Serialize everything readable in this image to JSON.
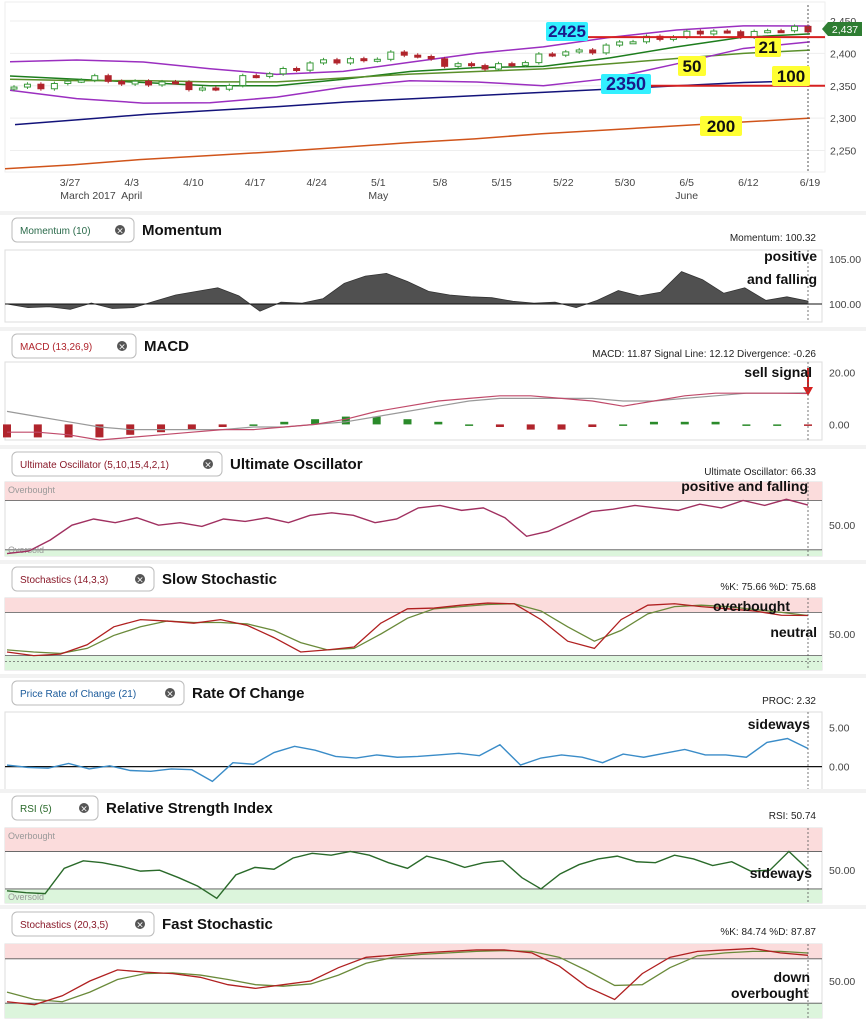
{
  "colors": {
    "up_candle": "#3a9a3a",
    "down_candle": "#b0242c",
    "bollinger": "#9b2fc0",
    "ma21": "#1d7d1d",
    "ma50": "#5a8f2a",
    "ma100": "#13137a",
    "ma200": "#d0541a",
    "support": "#d62020",
    "last_price_bg": "#2e7d32",
    "overbought_bg": "#fbdcdc",
    "oversold_bg": "#dcf5dc",
    "momentum_fill": "#505050",
    "macd_line": "#c04a6a",
    "signal_line": "#999999",
    "hist_neg": "#b0242c",
    "hist_pos": "#2a8a2a",
    "uo_line": "#a03060",
    "k_line": "#b02020",
    "d_line": "#6a8a3a",
    "proc_line": "#3a8cc8",
    "rsi_line": "#2a6a2a",
    "label_yellow": "#ffff33",
    "label_cyan": "#33f0ff"
  },
  "price_chart": {
    "x_labels": [
      "3/27",
      "4/3",
      "4/10",
      "4/17",
      "4/24",
      "5/1",
      "5/8",
      "5/15",
      "5/22",
      "5/30",
      "6/5",
      "6/12",
      "6/19"
    ],
    "month_labels": [
      "March 2017",
      "April",
      "May",
      "June"
    ],
    "y_ticks": [
      "2,450",
      "2,400",
      "2,350",
      "2,300",
      "2,250"
    ],
    "last_price": "2,437",
    "annotations": {
      "level_2425": "2425",
      "level_2350": "2350",
      "ma21": "21",
      "ma50": "50",
      "ma100": "100",
      "ma200": "200"
    }
  },
  "panels": [
    {
      "id": "momentum",
      "tag": "Momentum (10)",
      "title": "Momentum",
      "readout": "Momentum: 100.32",
      "y_ticks": [
        "105.00",
        "100.00"
      ],
      "notes": [
        "positive",
        "and falling"
      ]
    },
    {
      "id": "macd",
      "tag": "MACD (13,26,9)",
      "title": "MACD",
      "readout": "MACD: 11.87 Signal Line: 12.12 Divergence: -0.26",
      "y_ticks": [
        "20.00",
        "0.00"
      ],
      "notes": [
        "sell signal"
      ]
    },
    {
      "id": "uo",
      "tag": "Ultimate Oscillator (5,10,15,4,2,1)",
      "title": "Ultimate Oscillator",
      "readout": "Ultimate Oscillator: 66.33",
      "y_ticks": [
        "50.00"
      ],
      "notes": [
        "positive and falling"
      ],
      "zones": [
        "Overbought",
        "Oversold"
      ]
    },
    {
      "id": "slowstoch",
      "tag": "Stochastics (14,3,3)",
      "title": "Slow Stochastic",
      "readout": "%K: 75.66 %D: 75.68",
      "y_ticks": [
        "50.00"
      ],
      "notes": [
        "overbought",
        "neutral"
      ]
    },
    {
      "id": "proc",
      "tag": "Price Rate of Change (21)",
      "title": "Rate Of Change",
      "readout": "PROC: 2.32",
      "y_ticks": [
        "5.00",
        "0.00"
      ],
      "notes": [
        "sideways"
      ]
    },
    {
      "id": "rsi",
      "tag": "RSI (5)",
      "title": "Relative Strength Index",
      "readout": "RSI: 50.74",
      "y_ticks": [
        "50.00"
      ],
      "notes": [
        "sideways"
      ],
      "zones": [
        "Overbought",
        "Oversold"
      ]
    },
    {
      "id": "faststoch",
      "tag": "Stochastics (20,3,5)",
      "title": "Fast Stochastic",
      "readout": "%K: 84.74 %D: 87.87",
      "y_ticks": [
        "50.00"
      ],
      "notes": [
        "down",
        "overbought"
      ]
    }
  ],
  "chart_data": [
    {
      "type": "candlestick",
      "title": "",
      "xlabel": "",
      "ylabel": "",
      "x": [
        "3/27",
        "4/3",
        "4/10",
        "4/17",
        "4/24",
        "5/1",
        "5/8",
        "5/15",
        "5/22",
        "5/30",
        "6/5",
        "6/12",
        "6/19"
      ],
      "ylim": [
        2220,
        2470
      ],
      "close_approx": [
        2345,
        2360,
        2355,
        2345,
        2375,
        2390,
        2398,
        2375,
        2395,
        2412,
        2430,
        2432,
        2437
      ],
      "series": [
        {
          "name": "21",
          "values": [
            2365,
            2360,
            2355,
            2350,
            2350,
            2360,
            2372,
            2378,
            2380,
            2393,
            2410,
            2425,
            2430
          ]
        },
        {
          "name": "50",
          "values": [
            2360,
            2358,
            2358,
            2356,
            2356,
            2362,
            2368,
            2372,
            2376,
            2384,
            2392,
            2400,
            2405
          ]
        },
        {
          "name": "100",
          "values": [
            2290,
            2298,
            2306,
            2312,
            2318,
            2325,
            2330,
            2335,
            2340,
            2345,
            2350,
            2355,
            2358
          ]
        },
        {
          "name": "200",
          "values": [
            2222,
            2228,
            2236,
            2242,
            2248,
            2255,
            2262,
            2268,
            2276,
            2282,
            2288,
            2294,
            2300
          ]
        }
      ],
      "levels": [
        2425,
        2350
      ],
      "grid": true
    },
    {
      "type": "area",
      "title": "Momentum",
      "ylim": [
        98,
        106
      ],
      "series": [
        {
          "values": [
            100.0,
            99.6,
            99.7,
            99.4,
            100.1,
            99.5,
            99.6,
            100.3,
            101.0,
            101.4,
            101.8,
            100.9,
            99.2,
            100.2,
            100.1,
            100.6,
            102.3,
            103.1,
            103.4,
            102.5,
            101.4,
            101.0,
            100.8,
            100.7,
            100.3,
            100.1,
            100.2,
            99.6,
            100.4,
            101.5,
            100.9,
            101.3,
            103.6,
            102.7,
            101.2,
            101.8,
            100.4,
            100.8,
            100.32
          ]
        }
      ]
    },
    {
      "type": "line",
      "title": "MACD",
      "ylim": [
        -6,
        24
      ],
      "series": [
        {
          "name": "MACD",
          "values": [
            -3,
            -3,
            -4,
            -6,
            -5,
            -4,
            -3,
            -2,
            -2,
            -1,
            0,
            2,
            5,
            7,
            9,
            10,
            11,
            11,
            10,
            9,
            7,
            9,
            11,
            12,
            12,
            12,
            11.87
          ]
        },
        {
          "name": "Signal Line",
          "values": [
            5,
            3,
            1,
            -1,
            -2,
            -2,
            -2,
            -2,
            -1,
            -1,
            0,
            1,
            3,
            5,
            7,
            9,
            10,
            10,
            10,
            10,
            9,
            9,
            10,
            11,
            12,
            12,
            12.12
          ]
        },
        {
          "name": "Divergence",
          "values": [
            -5,
            -5,
            -5,
            -5,
            -4,
            -3,
            -2,
            -1,
            0,
            1,
            2,
            3,
            3,
            2,
            1,
            0,
            -1,
            -2,
            -2,
            -1,
            0,
            1,
            1,
            1,
            0,
            0,
            -0.26
          ]
        }
      ]
    },
    {
      "type": "line",
      "title": "Ultimate Oscillator",
      "ylim": [
        25,
        85
      ],
      "series": [
        {
          "values": [
            27,
            29,
            38,
            50,
            55,
            52,
            56,
            50,
            52,
            49,
            55,
            53,
            56,
            52,
            58,
            60,
            58,
            52,
            55,
            64,
            66,
            62,
            64,
            56,
            41,
            45,
            53,
            61,
            63,
            66,
            64,
            62,
            67,
            64,
            70,
            66,
            71,
            66.33
          ]
        }
      ]
    },
    {
      "type": "line",
      "title": "Slow Stochastic",
      "ylim": [
        0,
        100
      ],
      "series": [
        {
          "name": "%K",
          "values": [
            25,
            20,
            22,
            35,
            60,
            70,
            68,
            65,
            70,
            62,
            45,
            25,
            28,
            32,
            65,
            85,
            86,
            90,
            93,
            92,
            70,
            40,
            30,
            70,
            90,
            92,
            88,
            85,
            82,
            76,
            75.66
          ]
        },
        {
          "name": "%D",
          "values": [
            28,
            25,
            23,
            30,
            48,
            60,
            68,
            66,
            66,
            64,
            55,
            38,
            28,
            30,
            50,
            72,
            85,
            88,
            91,
            92,
            82,
            60,
            40,
            55,
            78,
            88,
            90,
            88,
            84,
            80,
            75.68
          ]
        }
      ]
    },
    {
      "type": "line",
      "title": "Rate Of Change",
      "ylim": [
        -3,
        7
      ],
      "series": [
        {
          "values": [
            0.2,
            -0.1,
            -0.2,
            0.4,
            -0.3,
            0.1,
            -0.5,
            -0.6,
            -0.3,
            -0.4,
            -1.9,
            0.5,
            0.3,
            1.8,
            2.6,
            2.1,
            1.3,
            1.1,
            1.5,
            1.2,
            1.3,
            1.5,
            1.7,
            1.4,
            2.8,
            0.2,
            1.1,
            1.5,
            1.2,
            0.5,
            1.6,
            1.2,
            1.7,
            2.2,
            1.5,
            1.5,
            1.2,
            3.1,
            3.6,
            2.32
          ]
        }
      ]
    },
    {
      "type": "line",
      "title": "Relative Strength Index",
      "ylim": [
        15,
        95
      ],
      "series": [
        {
          "values": [
            28,
            26,
            25,
            52,
            60,
            58,
            54,
            49,
            50,
            42,
            33,
            20,
            45,
            53,
            51,
            63,
            68,
            66,
            70,
            66,
            58,
            52,
            65,
            60,
            53,
            58,
            60,
            42,
            30,
            46,
            56,
            62,
            65,
            59,
            58,
            66,
            62,
            55,
            59,
            49,
            50,
            70,
            50.74
          ]
        }
      ]
    },
    {
      "type": "line",
      "title": "Fast Stochastic",
      "ylim": [
        0,
        100
      ],
      "series": [
        {
          "name": "%K",
          "values": [
            22,
            18,
            30,
            50,
            65,
            62,
            60,
            55,
            45,
            40,
            45,
            50,
            68,
            82,
            85,
            88,
            90,
            92,
            92,
            88,
            70,
            42,
            25,
            60,
            82,
            90,
            92,
            94,
            88,
            84.74
          ]
        },
        {
          "name": "%D",
          "values": [
            35,
            25,
            22,
            35,
            52,
            60,
            61,
            58,
            52,
            45,
            43,
            46,
            58,
            74,
            82,
            86,
            88,
            90,
            91,
            90,
            82,
            64,
            44,
            45,
            68,
            84,
            88,
            90,
            90,
            87.87
          ]
        }
      ]
    }
  ]
}
